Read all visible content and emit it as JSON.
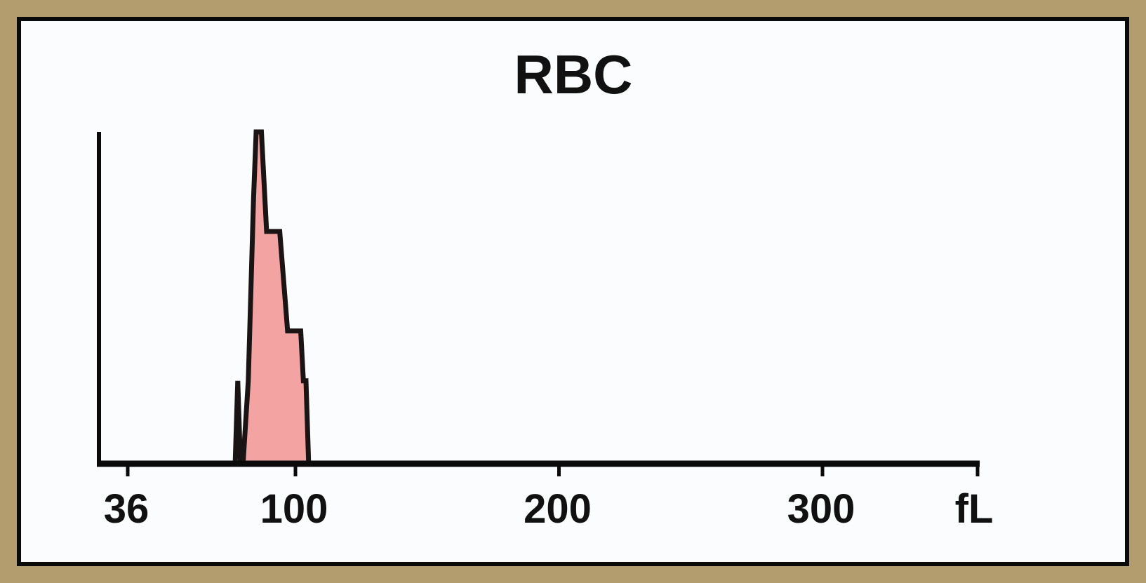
{
  "chart_data": {
    "type": "area",
    "title": "RBC",
    "xlabel": "",
    "ylabel": "",
    "x_unit": "fL",
    "xlim": [
      30,
      300
    ],
    "x_ticks": [
      {
        "value": 36,
        "label": "36"
      },
      {
        "value": 100,
        "label": "100"
      },
      {
        "value": 200,
        "label": "200"
      },
      {
        "value": 300,
        "label": "300"
      }
    ],
    "ylim": [
      0,
      100
    ],
    "grid": false,
    "series": [
      {
        "x": [
          77,
          78,
          79,
          80,
          82,
          84,
          85,
          87,
          89,
          92,
          94,
          96,
          97,
          100,
          102,
          103,
          104,
          105,
          106
        ],
        "y": [
          0,
          25,
          0,
          0,
          25,
          80,
          100,
          100,
          70,
          70,
          70,
          50,
          40,
          40,
          40,
          25,
          25,
          0,
          0
        ],
        "fill": "#f4a3a3",
        "stroke": "#1a1414"
      }
    ]
  }
}
